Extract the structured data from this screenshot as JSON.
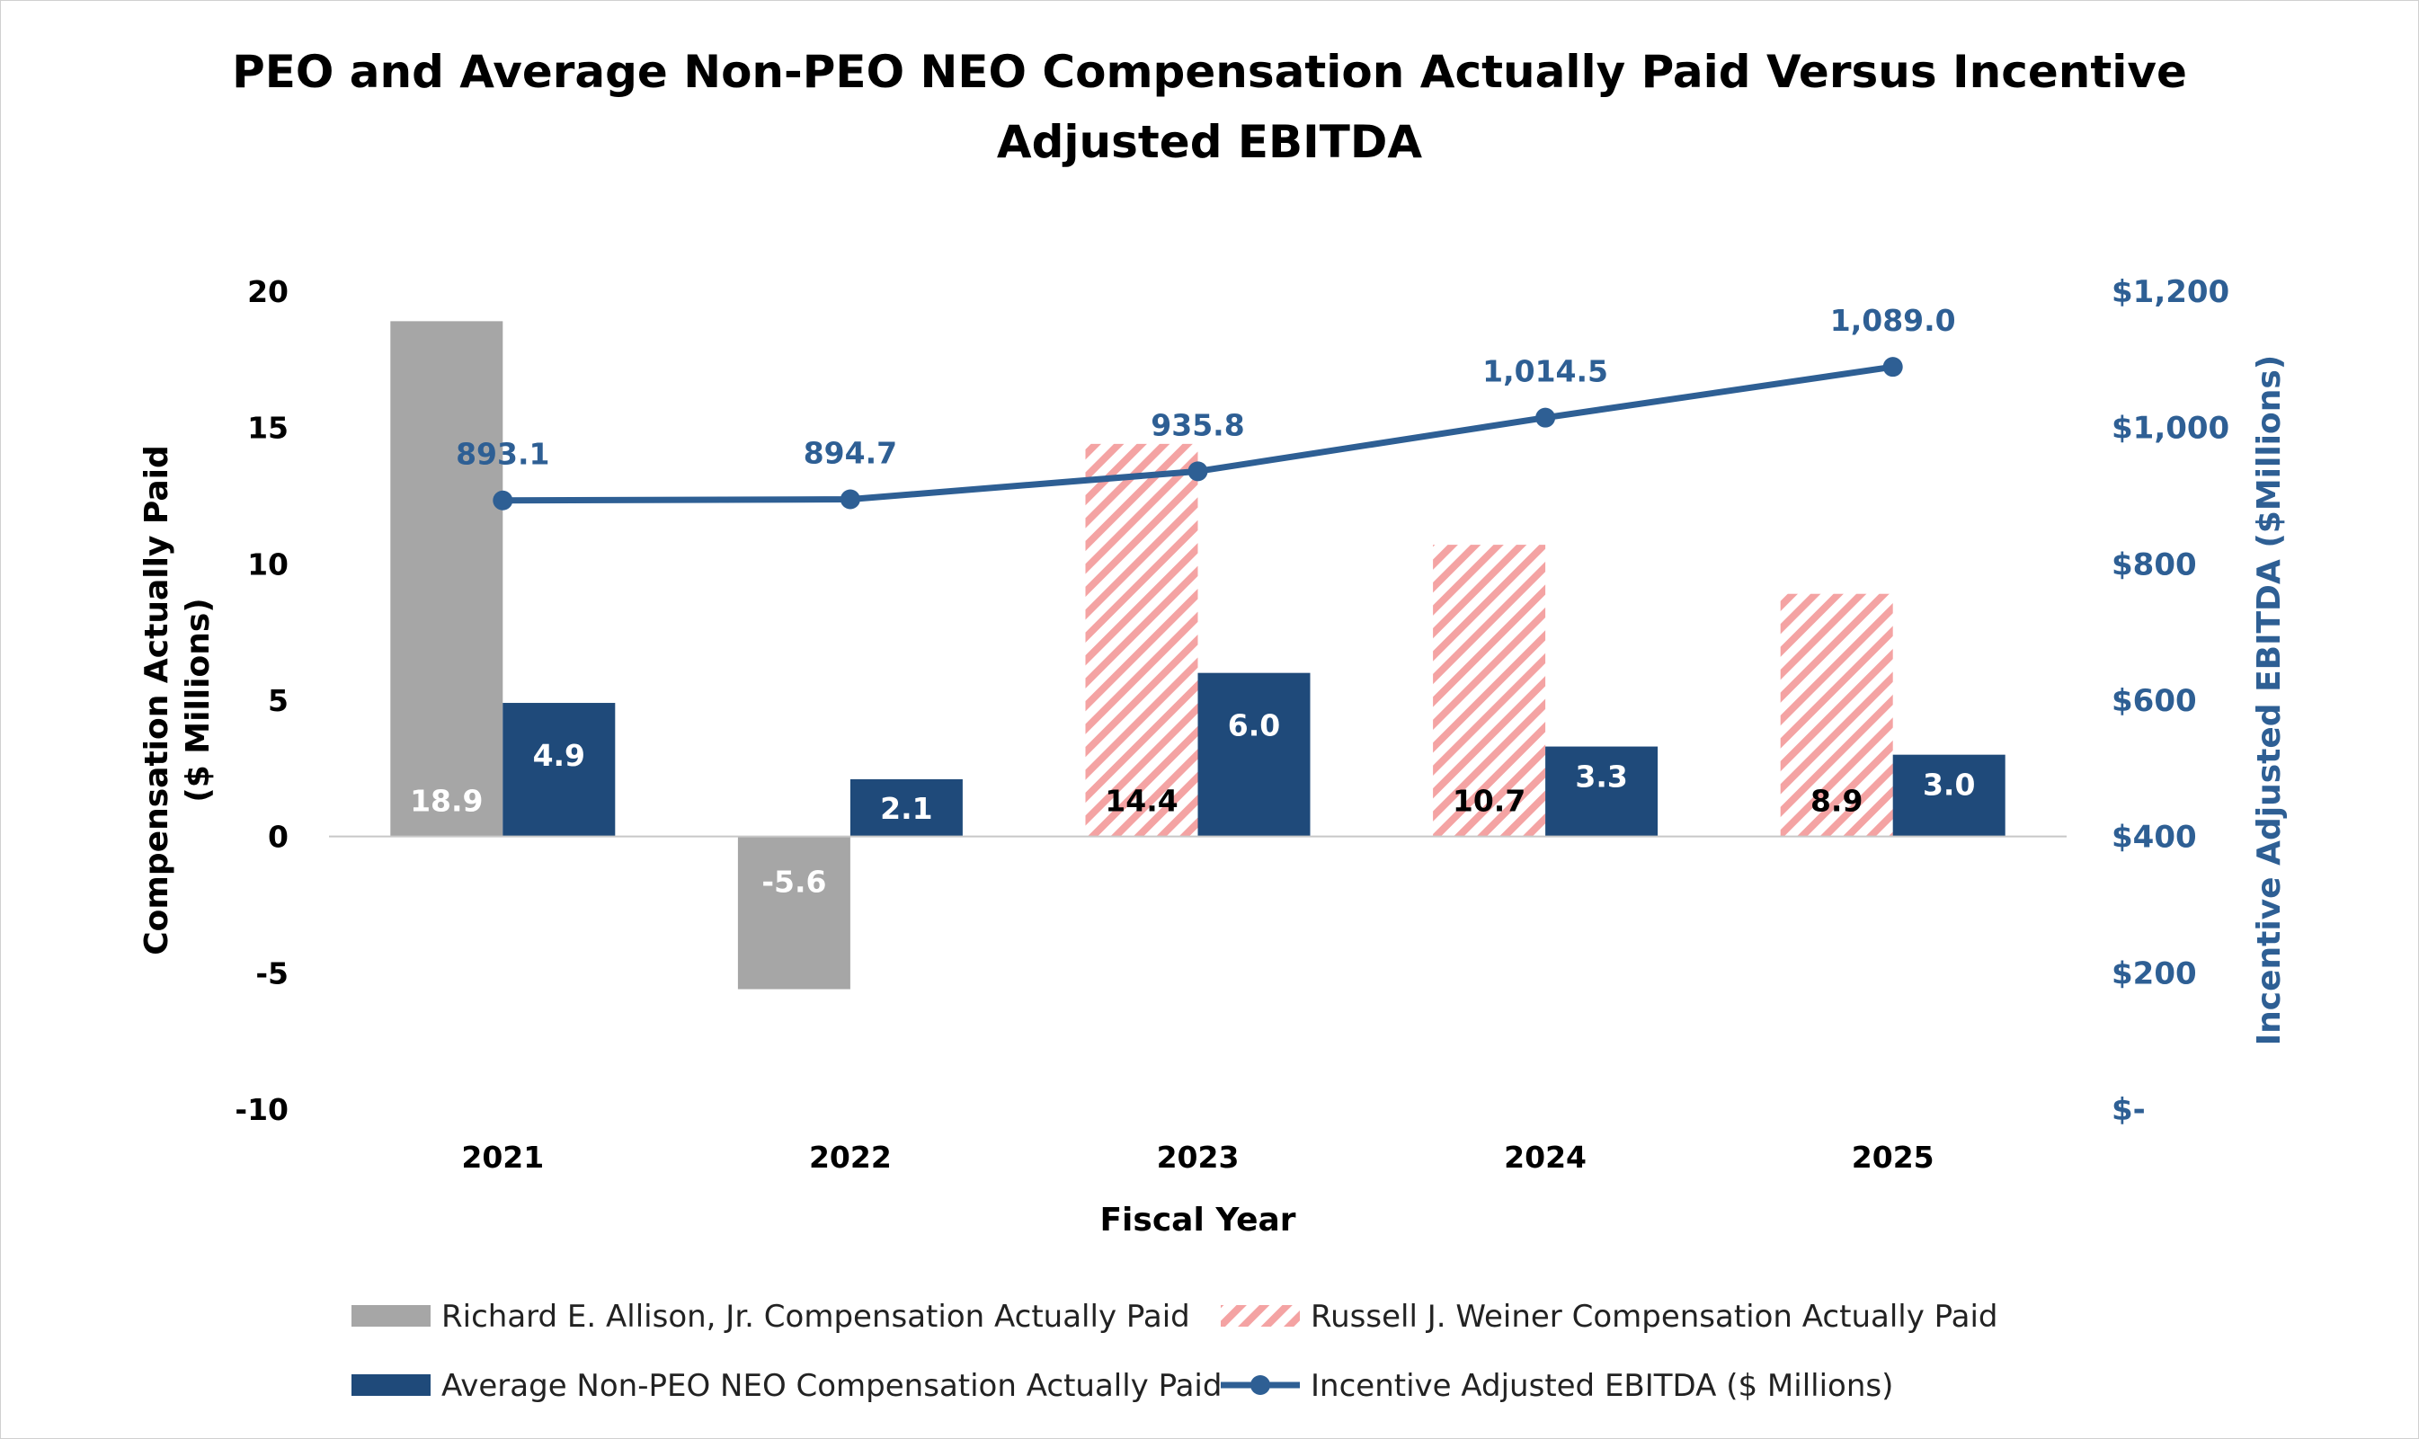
{
  "colors": {
    "allison": "#a6a6a6",
    "weiner_stripe": "#f4a3a3",
    "neo": "#1f4a7a",
    "ebitda": "#2e5f94",
    "baseline": "#c8c8c8"
  },
  "chart_data": {
    "type": "bar",
    "title_lines": [
      "PEO and Average Non-PEO NEO Compensation Actually Paid Versus Incentive",
      "Adjusted EBITDA"
    ],
    "xlabel": "Fiscal Year",
    "ylabel_lines": [
      "Compensation Actually Paid",
      "($ Millions)"
    ],
    "y2label": "Incentive Adjusted EBITDA ($Millions)",
    "categories": [
      "2021",
      "2022",
      "2023",
      "2024",
      "2025"
    ],
    "ylim": [
      -10,
      20
    ],
    "yticks": [
      20,
      15,
      10,
      5,
      0,
      -5,
      -10
    ],
    "yticks_labels": [
      "20",
      "15",
      "10",
      "5",
      "0",
      "-5",
      "-10"
    ],
    "y2lim": [
      0,
      1200
    ],
    "y2ticks": [
      1200,
      1000,
      800,
      600,
      400,
      200,
      0
    ],
    "y2ticks_labels": [
      "$1,200",
      "$1,000",
      "$800",
      "$600",
      "$400",
      "$200",
      "$-"
    ],
    "series": [
      {
        "name": "Richard E. Allison, Jr. Compensation Actually Paid",
        "type": "bar",
        "axis": "left",
        "values": [
          18.9,
          -5.6,
          null,
          null,
          null
        ],
        "labels": [
          "18.9",
          "-5.6",
          "",
          "",
          ""
        ]
      },
      {
        "name": "Russell J. Weiner Compensation Actually Paid",
        "type": "bar",
        "axis": "left",
        "values": [
          null,
          null,
          14.4,
          10.7,
          8.9
        ],
        "labels": [
          "",
          "",
          "14.4",
          "10.7",
          "8.9"
        ]
      },
      {
        "name": "Average Non-PEO NEO Compensation Actually Paid",
        "type": "bar",
        "axis": "left",
        "values": [
          4.9,
          2.1,
          6.0,
          3.3,
          3.0
        ],
        "labels": [
          "4.9",
          "2.1",
          "6.0",
          "3.3",
          "3.0"
        ]
      },
      {
        "name": "Incentive Adjusted EBITDA ($ Millions)",
        "type": "line",
        "axis": "right",
        "values": [
          893.1,
          894.7,
          935.8,
          1014.5,
          1089.0
        ],
        "labels": [
          "893.1",
          "894.7",
          "935.8",
          "1,014.5",
          "1,089.0"
        ]
      }
    ],
    "legend_position": "bottom"
  }
}
